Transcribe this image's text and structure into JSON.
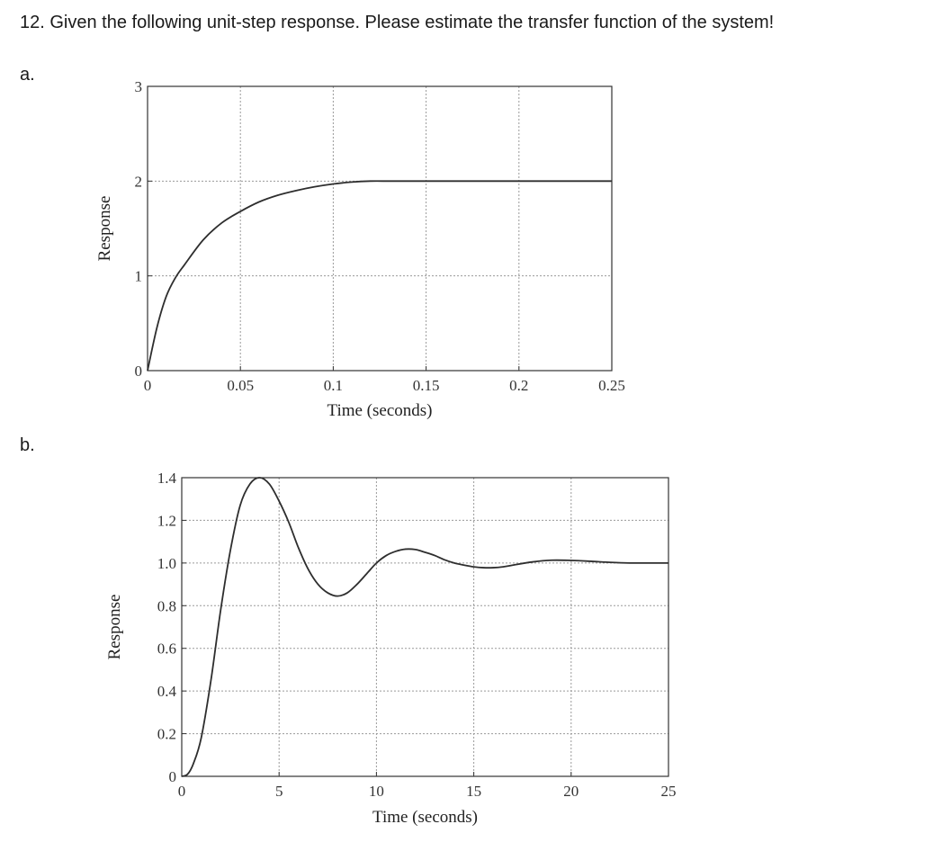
{
  "question": "12. Given the following unit-step response. Please estimate the transfer function of the system!",
  "parts": [
    "a.",
    "b."
  ],
  "chart_data": [
    {
      "type": "line",
      "part": "a.",
      "xlabel": "Time (seconds)",
      "ylabel": "Response",
      "xlim": [
        0,
        0.25
      ],
      "ylim": [
        0,
        3
      ],
      "xticks": [
        0,
        0.05,
        0.1,
        0.15,
        0.2,
        0.25
      ],
      "xtick_labels": [
        "0",
        "0.05",
        "0.1",
        "0.15",
        "0.2",
        "0.25"
      ],
      "yticks": [
        0,
        1,
        2,
        3
      ],
      "ytick_labels": [
        "0",
        "1",
        "2",
        "3"
      ],
      "grid": true,
      "series": [
        {
          "x": [
            0,
            0.005,
            0.01,
            0.015,
            0.02,
            0.03,
            0.04,
            0.05,
            0.06,
            0.07,
            0.08,
            0.09,
            0.1,
            0.11,
            0.12,
            0.13,
            0.14,
            0.15,
            0.2,
            0.25
          ],
          "y": [
            0,
            0.45,
            0.78,
            0.98,
            1.12,
            1.38,
            1.56,
            1.68,
            1.78,
            1.85,
            1.9,
            1.94,
            1.97,
            1.99,
            2.0,
            2.0,
            2.0,
            2.0,
            2.0,
            2.0
          ]
        }
      ]
    },
    {
      "type": "line",
      "part": "b.",
      "xlabel": "Time (seconds)",
      "ylabel": "Response",
      "xlim": [
        0,
        25
      ],
      "ylim": [
        0,
        1.4
      ],
      "xticks": [
        0,
        5,
        10,
        15,
        20,
        25
      ],
      "xtick_labels": [
        "0",
        "5",
        "10",
        "15",
        "20",
        "25"
      ],
      "yticks": [
        0,
        0.2,
        0.4,
        0.6,
        0.8,
        1.0,
        1.2,
        1.4
      ],
      "ytick_labels": [
        "0",
        "0.2",
        "0.4",
        "0.6",
        "0.8",
        "1.0",
        "1.2",
        "1.4"
      ],
      "grid": true,
      "series": [
        {
          "x": [
            0,
            0.3,
            0.6,
            1,
            1.5,
            2,
            2.5,
            3,
            3.5,
            4,
            4.5,
            5,
            5.5,
            6,
            6.5,
            7,
            7.5,
            8,
            8.5,
            9,
            9.5,
            10,
            10.5,
            11,
            11.5,
            12,
            12.5,
            13,
            13.5,
            14,
            14.5,
            15,
            15.5,
            16,
            16.5,
            17,
            18,
            19,
            20,
            21,
            22,
            23,
            24,
            25
          ],
          "y": [
            0,
            0.01,
            0.06,
            0.18,
            0.45,
            0.78,
            1.06,
            1.27,
            1.37,
            1.4,
            1.37,
            1.29,
            1.19,
            1.07,
            0.97,
            0.9,
            0.86,
            0.845,
            0.86,
            0.9,
            0.95,
            1.0,
            1.035,
            1.055,
            1.065,
            1.063,
            1.05,
            1.035,
            1.015,
            1.0,
            0.99,
            0.982,
            0.978,
            0.978,
            0.982,
            0.99,
            1.005,
            1.013,
            1.012,
            1.008,
            1.003,
            1.0,
            1.0,
            1.0
          ]
        }
      ]
    }
  ]
}
